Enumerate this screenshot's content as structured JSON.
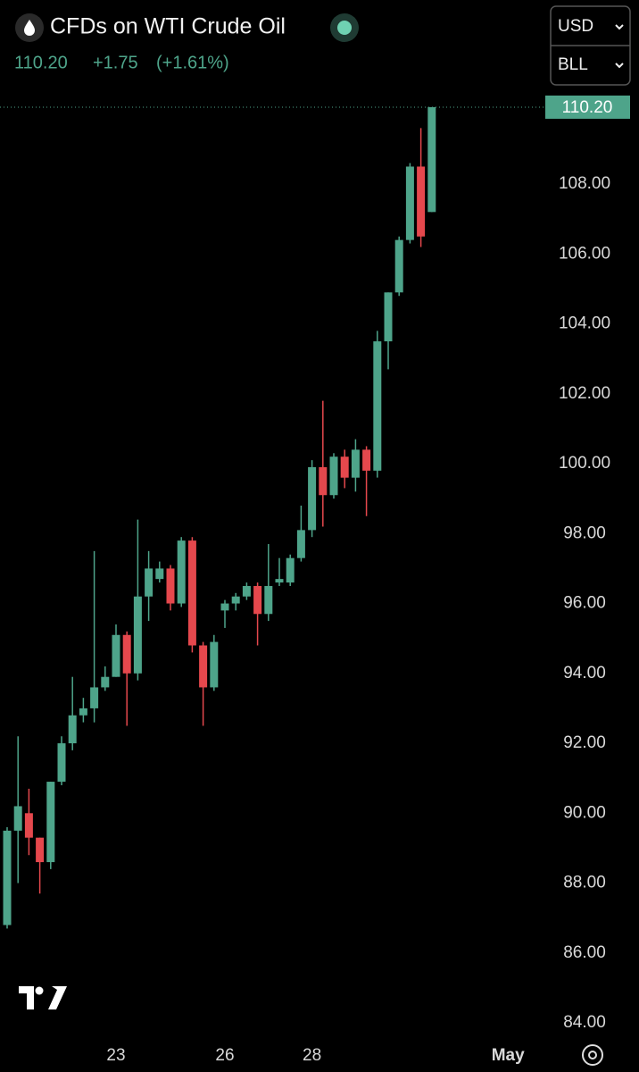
{
  "header": {
    "title": "CFDs on WTI Crude Oil",
    "price": "110.20",
    "change": "+1.75",
    "change_pct": "(+1.61%)",
    "currency": "USD",
    "unit": "BLL"
  },
  "chart_data": {
    "type": "candlestick",
    "categories": [
      null,
      null,
      null,
      null,
      null,
      null,
      null,
      null,
      null,
      null,
      "23",
      null,
      null,
      null,
      null,
      null,
      null,
      null,
      null,
      null,
      "26",
      null,
      null,
      null,
      null,
      null,
      null,
      null,
      "28",
      null,
      null,
      null,
      null,
      null,
      null,
      null,
      null,
      null,
      null,
      null,
      null,
      null,
      null,
      null,
      null,
      null,
      "May",
      null,
      null
    ],
    "open": [
      86.8,
      89.5,
      90.0,
      89.3,
      88.6,
      90.9,
      92.0,
      92.8,
      93.0,
      93.6,
      93.9,
      95.1,
      94.0,
      96.2,
      96.7,
      97.0,
      96.0,
      97.8,
      94.8,
      93.6,
      95.8,
      96.0,
      96.2,
      96.5,
      95.7,
      96.6,
      96.6,
      97.3,
      98.1,
      99.9,
      99.1,
      100.2,
      99.6,
      100.4,
      99.8,
      103.5,
      104.9,
      106.4,
      108.5,
      107.2,
      null,
      null,
      null,
      null,
      null,
      null,
      null,
      null,
      null
    ],
    "high": [
      89.6,
      92.2,
      90.7,
      89.3,
      90.9,
      92.2,
      93.9,
      93.3,
      97.5,
      94.2,
      95.4,
      95.2,
      98.4,
      97.5,
      97.2,
      97.1,
      97.9,
      97.9,
      94.9,
      95.1,
      96.1,
      96.3,
      96.6,
      96.6,
      97.7,
      97.3,
      97.4,
      98.8,
      100.1,
      101.8,
      100.3,
      100.4,
      100.7,
      100.5,
      103.8,
      104.9,
      106.5,
      108.6,
      109.6,
      110.2,
      null,
      null,
      null,
      null,
      null,
      null,
      null,
      null,
      null
    ],
    "low": [
      86.7,
      88.0,
      88.8,
      87.7,
      88.4,
      90.8,
      91.8,
      92.6,
      92.6,
      93.5,
      93.9,
      92.5,
      93.8,
      95.5,
      96.6,
      95.8,
      95.9,
      94.6,
      92.5,
      93.5,
      95.3,
      95.8,
      96.1,
      94.8,
      95.5,
      96.5,
      96.5,
      97.2,
      97.9,
      98.2,
      99.0,
      99.3,
      99.2,
      98.5,
      99.6,
      102.7,
      104.8,
      106.3,
      106.2,
      107.2,
      null,
      null,
      null,
      null,
      null,
      null,
      null,
      null,
      null
    ],
    "close": [
      89.5,
      90.2,
      89.3,
      88.6,
      90.9,
      92.0,
      92.8,
      93.0,
      93.6,
      93.9,
      95.1,
      94.0,
      96.2,
      97.0,
      97.0,
      96.0,
      97.8,
      94.8,
      93.6,
      94.9,
      96.0,
      96.2,
      96.5,
      95.7,
      96.5,
      96.7,
      97.3,
      98.1,
      99.9,
      99.1,
      100.2,
      99.6,
      100.4,
      99.8,
      103.5,
      104.9,
      106.4,
      108.5,
      106.5,
      110.2,
      null,
      null,
      null,
      null,
      null,
      null,
      null,
      null,
      null
    ],
    "up_color": "#4ea48a",
    "down_color": "#e5484d",
    "ylim": [
      83.49,
      110.71
    ],
    "yticks": [
      {
        "value": 84,
        "label": "84.00"
      },
      {
        "value": 86,
        "label": "86.00"
      },
      {
        "value": 88,
        "label": "88.00"
      },
      {
        "value": 90,
        "label": "90.00"
      },
      {
        "value": 92,
        "label": "92.00"
      },
      {
        "value": 94,
        "label": "94.00"
      },
      {
        "value": 96,
        "label": "96.00"
      },
      {
        "value": 98,
        "label": "98.00"
      },
      {
        "value": 100,
        "label": "100.00"
      },
      {
        "value": 102,
        "label": "102.00"
      },
      {
        "value": 104,
        "label": "104.00"
      },
      {
        "value": 106,
        "label": "106.00"
      },
      {
        "value": 108,
        "label": "108.00"
      }
    ],
    "last_price": {
      "value": 110.2,
      "label": "110.20"
    },
    "grid": false
  }
}
